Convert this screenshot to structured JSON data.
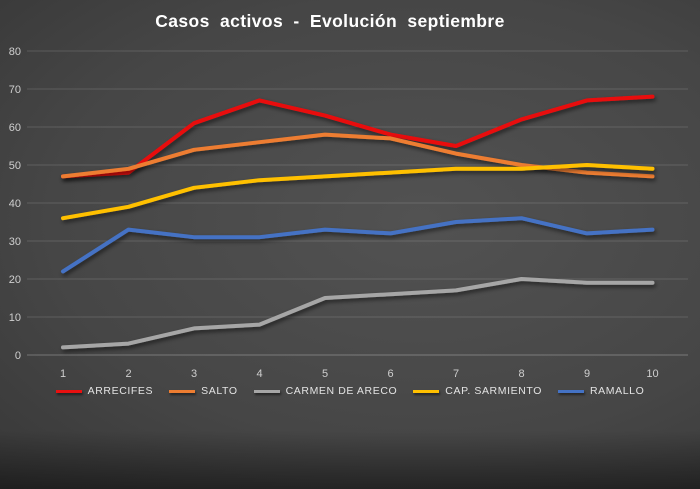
{
  "chart_data": {
    "type": "line",
    "title": "Casos activos - Evolución septiembre",
    "x_labels": [
      "1",
      "2",
      "3",
      "4",
      "5",
      "6",
      "7",
      "8",
      "9",
      "10"
    ],
    "series": [
      {
        "name": "ARRECIFES",
        "color": "#e81010",
        "values": [
          47,
          48,
          61,
          67,
          63,
          58,
          55,
          62,
          67,
          68
        ]
      },
      {
        "name": "SALTO",
        "color": "#ed7d31",
        "values": [
          47,
          49,
          54,
          56,
          58,
          57,
          53,
          50,
          48,
          47
        ]
      },
      {
        "name": "CARMEN DE ARECO",
        "color": "#a6a6a6",
        "values": [
          2,
          3,
          7,
          8,
          15,
          16,
          17,
          20,
          19,
          19
        ]
      },
      {
        "name": "CAP. SARMIENTO",
        "color": "#ffc000",
        "values": [
          36,
          39,
          44,
          46,
          47,
          48,
          49,
          49,
          50,
          49
        ]
      },
      {
        "name": "RAMALLO",
        "color": "#4472c4",
        "values": [
          22,
          33,
          31,
          31,
          33,
          32,
          35,
          36,
          32,
          33
        ]
      }
    ],
    "ylim": [
      0,
      80
    ],
    "ytick_step": 10,
    "grid": "horizontal",
    "legend_position": "bottom",
    "xlabel": "",
    "ylabel": ""
  }
}
